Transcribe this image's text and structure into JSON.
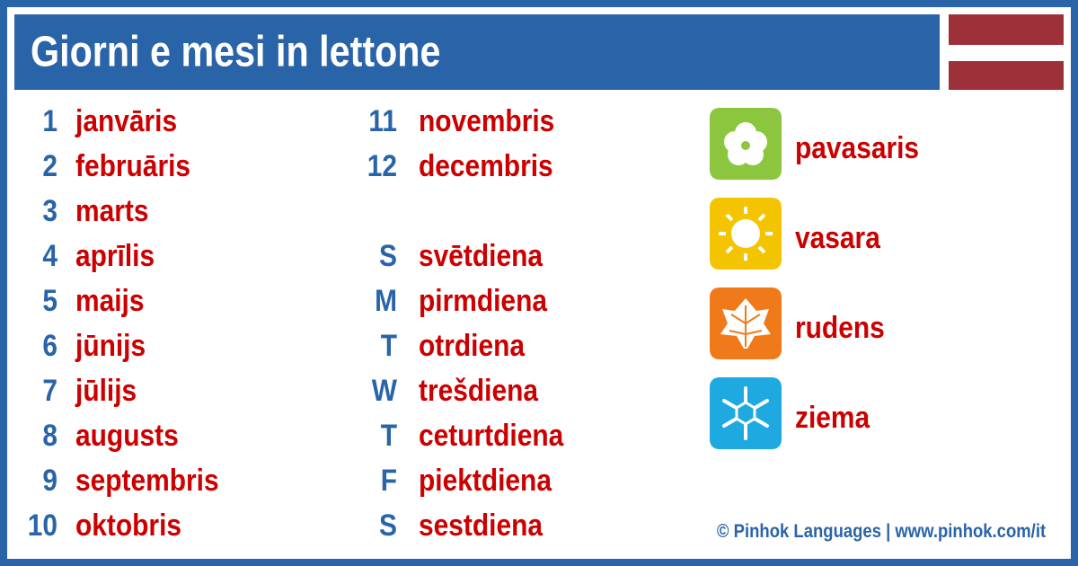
{
  "header": {
    "title": "Giorni e mesi in lettone"
  },
  "months": [
    {
      "number": 1,
      "name": "janvāris"
    },
    {
      "number": 2,
      "name": "februāris"
    },
    {
      "number": 3,
      "name": "marts"
    },
    {
      "number": 4,
      "name": "aprīlis"
    },
    {
      "number": 5,
      "name": "maijs"
    },
    {
      "number": 6,
      "name": "jūnijs"
    },
    {
      "number": 7,
      "name": "jūlijs"
    },
    {
      "number": 8,
      "name": "augusts"
    },
    {
      "number": 9,
      "name": "septembris"
    },
    {
      "number": 10,
      "name": "oktobris"
    },
    {
      "number": 11,
      "name": "novembris"
    },
    {
      "number": 12,
      "name": "decembris"
    }
  ],
  "days": [
    {
      "letter": "S",
      "name": "svētdiena"
    },
    {
      "letter": "M",
      "name": "pirmdiena"
    },
    {
      "letter": "T",
      "name": "otrdiena"
    },
    {
      "letter": "W",
      "name": "trešdiena"
    },
    {
      "letter": "T",
      "name": "ceturtdiena"
    },
    {
      "letter": "F",
      "name": "piektdiena"
    },
    {
      "letter": "S",
      "name": "sestdiena"
    }
  ],
  "seasons": [
    {
      "name": "pavasaris"
    },
    {
      "name": "vasara"
    },
    {
      "name": "rudens"
    },
    {
      "name": "ziema"
    }
  ],
  "footer": "© Pinhok Languages | www.pinhok.com/it"
}
